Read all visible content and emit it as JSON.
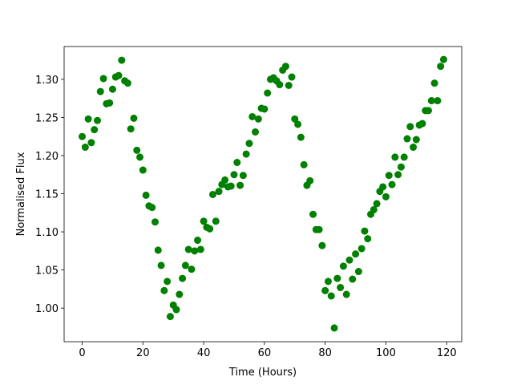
{
  "chart_data": {
    "type": "scatter",
    "x_label": "Time (Hours)",
    "y_label": "Normalised Flux",
    "color": "#008000",
    "grid": false,
    "xlim": [
      -5.95,
      124.95
    ],
    "ylim": [
      0.956,
      1.343
    ],
    "xticks": [
      0,
      20,
      40,
      60,
      80,
      100,
      120
    ],
    "yticks": [
      {
        "value": 1.0,
        "label": "1.00"
      },
      1.05,
      {
        "value": 1.1,
        "label": "1.10"
      },
      1.15,
      {
        "value": 1.2,
        "label": "1.20"
      },
      1.25,
      {
        "value": 1.3,
        "label": "1.30"
      }
    ],
    "x": [
      0,
      1,
      2,
      3,
      4,
      5,
      6,
      7,
      8,
      9,
      10,
      11,
      12,
      13,
      14,
      15,
      16,
      17,
      18,
      19,
      20,
      21,
      22,
      23,
      24,
      25,
      26,
      27,
      28,
      29,
      30,
      31,
      32,
      33,
      34,
      35,
      36,
      37,
      38,
      39,
      40,
      41,
      42,
      43,
      44,
      45,
      46,
      47,
      48,
      49,
      50,
      51,
      52,
      53,
      54,
      55,
      56,
      57,
      58,
      59,
      60,
      61,
      62,
      63,
      64,
      65,
      66,
      67,
      68,
      69,
      70,
      71,
      72,
      73,
      74,
      75,
      76,
      77,
      78,
      79,
      80,
      81,
      82,
      83,
      84,
      85,
      86,
      87,
      88,
      89,
      90,
      91,
      92,
      93,
      94,
      95,
      96,
      97,
      98,
      99,
      100,
      101,
      102,
      103,
      104,
      105,
      106,
      107,
      108,
      109,
      110,
      111,
      112,
      113,
      114,
      115,
      116,
      117,
      118,
      119
    ],
    "values": [
      1.225,
      1.211,
      1.248,
      1.217,
      1.234,
      1.246,
      1.284,
      1.301,
      1.268,
      1.269,
      1.287,
      1.303,
      1.305,
      1.325,
      1.298,
      1.295,
      1.235,
      1.249,
      1.207,
      1.198,
      1.181,
      1.148,
      1.134,
      1.132,
      1.113,
      1.076,
      1.056,
      1.023,
      1.035,
      0.989,
      1.004,
      0.998,
      1.018,
      1.039,
      1.056,
      1.077,
      1.051,
      1.075,
      1.089,
      1.077,
      1.114,
      1.106,
      1.104,
      1.149,
      1.114,
      1.153,
      1.162,
      1.168,
      1.159,
      1.16,
      1.175,
      1.191,
      1.161,
      1.174,
      1.202,
      1.216,
      1.251,
      1.231,
      1.248,
      1.262,
      1.261,
      1.282,
      1.3,
      1.302,
      1.298,
      1.293,
      1.312,
      1.317,
      1.292,
      1.303,
      1.248,
      1.241,
      1.224,
      1.188,
      1.161,
      1.167,
      1.123,
      1.103,
      1.103,
      1.082,
      1.023,
      1.035,
      1.016,
      0.974,
      1.039,
      1.027,
      1.055,
      1.018,
      1.063,
      1.038,
      1.071,
      1.048,
      1.078,
      1.101,
      1.091,
      1.123,
      1.129,
      1.137,
      1.153,
      1.159,
      1.146,
      1.174,
      1.162,
      1.198,
      1.175,
      1.185,
      1.198,
      1.222,
      1.238,
      1.211,
      1.221,
      1.24,
      1.242,
      1.259,
      1.259,
      1.272,
      1.295,
      1.272,
      1.317,
      1.326
    ]
  }
}
